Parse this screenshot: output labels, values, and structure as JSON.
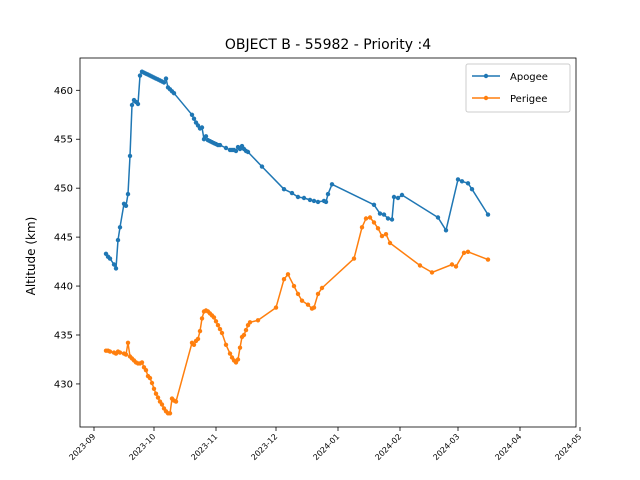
{
  "chart_data": {
    "type": "line",
    "title": "OBJECT B - 55982 - Priority :4",
    "xlabel": "",
    "ylabel": "Altitude (km)",
    "ylim": [
      425.6,
      463.3
    ],
    "xlim": [
      "2023-08-25",
      "2024-04-29"
    ],
    "x_ticks": [
      "2023-09",
      "2023-10",
      "2023-11",
      "2023-12",
      "2024-01",
      "2024-02",
      "2024-03",
      "2024-04",
      "2024-05"
    ],
    "y_ticks": [
      430,
      435,
      440,
      445,
      450,
      455,
      460
    ],
    "grid": false,
    "legend_position": "top-right",
    "series": [
      {
        "name": "Apogee",
        "color": "#1f77b4",
        "points": [
          [
            "2023-09-07",
            443.3
          ],
          [
            "2023-09-08",
            443.0
          ],
          [
            "2023-09-09",
            442.8
          ],
          [
            "2023-09-11",
            442.2
          ],
          [
            "2023-09-12",
            441.8
          ],
          [
            "2023-09-13",
            444.7
          ],
          [
            "2023-09-14",
            446.0
          ],
          [
            "2023-09-16",
            448.4
          ],
          [
            "2023-09-17",
            448.2
          ],
          [
            "2023-09-18",
            449.4
          ],
          [
            "2023-09-19",
            453.3
          ],
          [
            "2023-09-20",
            458.5
          ],
          [
            "2023-09-21",
            459.0
          ],
          [
            "2023-09-22",
            458.8
          ],
          [
            "2023-09-23",
            458.6
          ],
          [
            "2023-09-24",
            461.5
          ],
          [
            "2023-09-25",
            461.9
          ],
          [
            "2023-09-26",
            461.8
          ],
          [
            "2023-09-27",
            461.7
          ],
          [
            "2023-09-28",
            461.6
          ],
          [
            "2023-09-29",
            461.5
          ],
          [
            "2023-09-30",
            461.4
          ],
          [
            "2023-10-01",
            461.3
          ],
          [
            "2023-10-02",
            461.2
          ],
          [
            "2023-10-03",
            461.1
          ],
          [
            "2023-10-04",
            461.0
          ],
          [
            "2023-10-05",
            460.9
          ],
          [
            "2023-10-06",
            460.8
          ],
          [
            "2023-10-07",
            461.2
          ],
          [
            "2023-10-08",
            460.3
          ],
          [
            "2023-10-09",
            460.1
          ],
          [
            "2023-10-10",
            459.9
          ],
          [
            "2023-10-11",
            459.7
          ],
          [
            "2023-10-20",
            457.5
          ],
          [
            "2023-10-21",
            457.1
          ],
          [
            "2023-10-22",
            456.7
          ],
          [
            "2023-10-23",
            456.4
          ],
          [
            "2023-10-24",
            456.1
          ],
          [
            "2023-10-25",
            456.2
          ],
          [
            "2023-10-26",
            455.0
          ],
          [
            "2023-10-27",
            455.3
          ],
          [
            "2023-10-28",
            454.9
          ],
          [
            "2023-10-29",
            454.8
          ],
          [
            "2023-10-30",
            454.7
          ],
          [
            "2023-10-31",
            454.6
          ],
          [
            "2023-11-01",
            454.5
          ],
          [
            "2023-11-02",
            454.4
          ],
          [
            "2023-11-03",
            454.4
          ],
          [
            "2023-11-06",
            454.1
          ],
          [
            "2023-11-08",
            453.9
          ],
          [
            "2023-11-09",
            453.9
          ],
          [
            "2023-11-10",
            453.9
          ],
          [
            "2023-11-11",
            453.8
          ],
          [
            "2023-11-12",
            454.2
          ],
          [
            "2023-11-13",
            454.0
          ],
          [
            "2023-11-14",
            454.3
          ],
          [
            "2023-11-15",
            454.0
          ],
          [
            "2023-11-16",
            453.8
          ],
          [
            "2023-11-17",
            453.7
          ],
          [
            "2023-11-24",
            452.2
          ],
          [
            "2023-12-05",
            449.9
          ],
          [
            "2023-12-09",
            449.5
          ],
          [
            "2023-12-12",
            449.1
          ],
          [
            "2023-12-15",
            449.0
          ],
          [
            "2023-12-18",
            448.8
          ],
          [
            "2023-12-20",
            448.7
          ],
          [
            "2023-12-22",
            448.6
          ],
          [
            "2023-12-25",
            448.7
          ],
          [
            "2023-12-26",
            448.6
          ],
          [
            "2023-12-27",
            449.4
          ],
          [
            "2023-12-29",
            450.4
          ],
          [
            "2024-01-19",
            448.3
          ],
          [
            "2024-01-22",
            447.4
          ],
          [
            "2024-01-24",
            447.3
          ],
          [
            "2024-01-26",
            446.9
          ],
          [
            "2024-01-28",
            446.8
          ],
          [
            "2024-01-29",
            449.1
          ],
          [
            "2024-01-31",
            449.0
          ],
          [
            "2024-02-02",
            449.3
          ],
          [
            "2024-02-20",
            447.0
          ],
          [
            "2024-02-24",
            445.7
          ],
          [
            "2024-03-01",
            450.9
          ],
          [
            "2024-03-03",
            450.7
          ],
          [
            "2024-03-06",
            450.5
          ],
          [
            "2024-03-08",
            449.9
          ],
          [
            "2024-03-16",
            447.3
          ]
        ]
      },
      {
        "name": "Perigee",
        "color": "#ff7f0e",
        "points": [
          [
            "2023-09-07",
            433.4
          ],
          [
            "2023-09-08",
            433.4
          ],
          [
            "2023-09-09",
            433.3
          ],
          [
            "2023-09-11",
            433.2
          ],
          [
            "2023-09-12",
            433.1
          ],
          [
            "2023-09-13",
            433.3
          ],
          [
            "2023-09-14",
            433.2
          ],
          [
            "2023-09-16",
            433.1
          ],
          [
            "2023-09-17",
            433.0
          ],
          [
            "2023-09-18",
            434.2
          ],
          [
            "2023-09-19",
            432.8
          ],
          [
            "2023-09-20",
            432.6
          ],
          [
            "2023-09-21",
            432.4
          ],
          [
            "2023-09-22",
            432.2
          ],
          [
            "2023-09-23",
            432.1
          ],
          [
            "2023-09-24",
            432.1
          ],
          [
            "2023-09-25",
            432.2
          ],
          [
            "2023-09-26",
            431.7
          ],
          [
            "2023-09-27",
            431.4
          ],
          [
            "2023-09-28",
            430.8
          ],
          [
            "2023-09-29",
            430.6
          ],
          [
            "2023-09-30",
            430.1
          ],
          [
            "2023-10-01",
            429.5
          ],
          [
            "2023-10-02",
            429.0
          ],
          [
            "2023-10-03",
            428.6
          ],
          [
            "2023-10-04",
            428.2
          ],
          [
            "2023-10-05",
            427.9
          ],
          [
            "2023-10-06",
            427.5
          ],
          [
            "2023-10-07",
            427.2
          ],
          [
            "2023-10-08",
            427.0
          ],
          [
            "2023-10-09",
            427.0
          ],
          [
            "2023-10-10",
            428.5
          ],
          [
            "2023-10-11",
            428.3
          ],
          [
            "2023-10-12",
            428.2
          ],
          [
            "2023-10-20",
            434.2
          ],
          [
            "2023-10-21",
            434.0
          ],
          [
            "2023-10-22",
            434.4
          ],
          [
            "2023-10-23",
            434.6
          ],
          [
            "2023-10-24",
            435.4
          ],
          [
            "2023-10-25",
            436.7
          ],
          [
            "2023-10-26",
            437.4
          ],
          [
            "2023-10-27",
            437.5
          ],
          [
            "2023-10-28",
            437.4
          ],
          [
            "2023-10-29",
            437.2
          ],
          [
            "2023-10-30",
            437.0
          ],
          [
            "2023-10-31",
            436.8
          ],
          [
            "2023-11-01",
            436.4
          ],
          [
            "2023-11-02",
            436.0
          ],
          [
            "2023-11-03",
            435.6
          ],
          [
            "2023-11-04",
            435.2
          ],
          [
            "2023-11-06",
            434.0
          ],
          [
            "2023-11-08",
            433.1
          ],
          [
            "2023-11-09",
            432.7
          ],
          [
            "2023-11-10",
            432.4
          ],
          [
            "2023-11-11",
            432.2
          ],
          [
            "2023-11-12",
            432.5
          ],
          [
            "2023-11-13",
            433.7
          ],
          [
            "2023-11-14",
            434.8
          ],
          [
            "2023-11-15",
            435.0
          ],
          [
            "2023-11-16",
            435.5
          ],
          [
            "2023-11-17",
            436.0
          ],
          [
            "2023-11-18",
            436.3
          ],
          [
            "2023-11-22",
            436.5
          ],
          [
            "2023-12-01",
            437.8
          ],
          [
            "2023-12-05",
            440.7
          ],
          [
            "2023-12-07",
            441.2
          ],
          [
            "2023-12-10",
            440.0
          ],
          [
            "2023-12-12",
            439.2
          ],
          [
            "2023-12-14",
            438.5
          ],
          [
            "2023-12-17",
            438.1
          ],
          [
            "2023-12-19",
            437.7
          ],
          [
            "2023-12-20",
            437.8
          ],
          [
            "2023-12-22",
            439.2
          ],
          [
            "2023-12-24",
            439.8
          ],
          [
            "2024-01-09",
            442.8
          ],
          [
            "2024-01-13",
            446.0
          ],
          [
            "2024-01-15",
            446.9
          ],
          [
            "2024-01-17",
            447.0
          ],
          [
            "2024-01-19",
            446.5
          ],
          [
            "2024-01-21",
            445.9
          ],
          [
            "2024-01-23",
            445.1
          ],
          [
            "2024-01-25",
            445.3
          ],
          [
            "2024-01-27",
            444.4
          ],
          [
            "2024-02-11",
            442.1
          ],
          [
            "2024-02-17",
            441.4
          ],
          [
            "2024-02-27",
            442.2
          ],
          [
            "2024-02-29",
            442.0
          ],
          [
            "2024-03-04",
            443.4
          ],
          [
            "2024-03-06",
            443.5
          ],
          [
            "2024-03-16",
            442.7
          ]
        ]
      }
    ]
  }
}
